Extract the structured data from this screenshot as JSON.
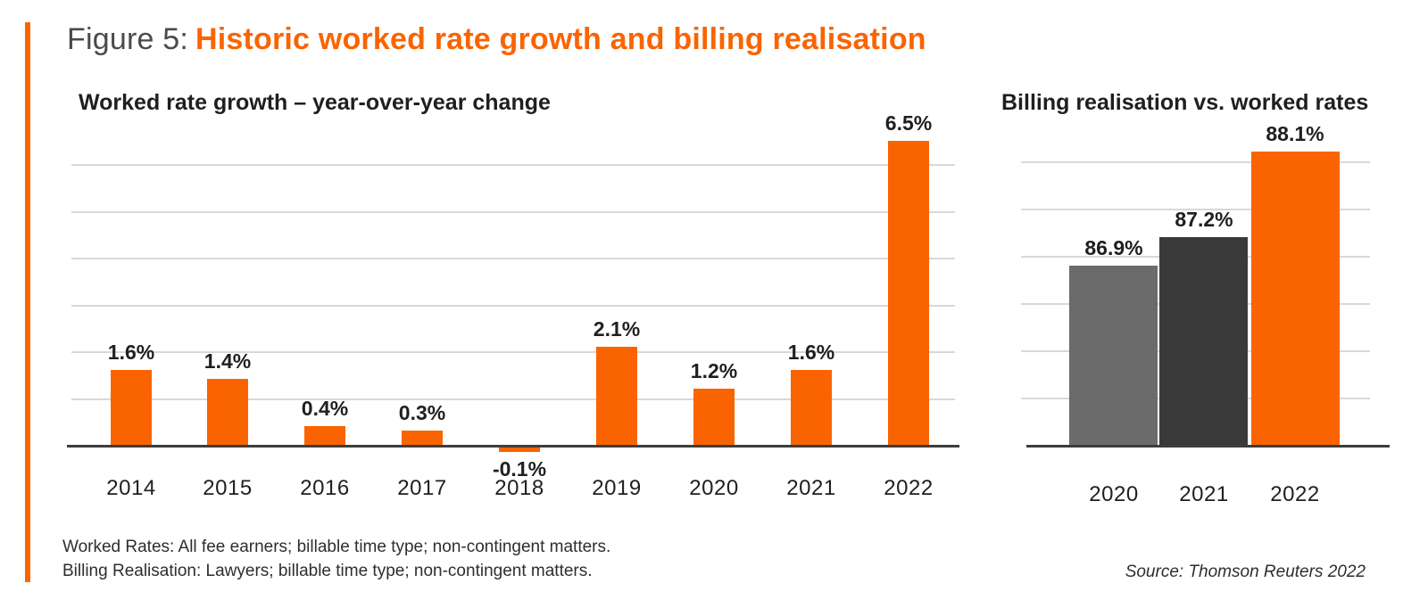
{
  "figure": {
    "title_prefix": "Figure 5:",
    "title_main": "Historic worked rate growth and billing realisation"
  },
  "chart_data": [
    {
      "type": "bar",
      "title": "Worked rate growth – year-over-year change",
      "categories": [
        "2014",
        "2015",
        "2016",
        "2017",
        "2018",
        "2019",
        "2020",
        "2021",
        "2022"
      ],
      "values": [
        1.6,
        1.4,
        0.4,
        0.3,
        -0.1,
        2.1,
        1.2,
        1.6,
        6.5
      ],
      "labels": [
        "1.6%",
        "1.4%",
        "0.4%",
        "0.3%",
        "-0.1%",
        "2.1%",
        "1.2%",
        "1.6%",
        "6.5%"
      ],
      "unit": "percent year-over-year change",
      "ylim": [
        -0.5,
        6.8
      ],
      "gridlines": [
        1,
        2,
        3,
        4,
        5,
        6
      ],
      "grid": true,
      "legend": false,
      "data_labels": true,
      "bar_color": "#FA6400",
      "xlabel": "",
      "ylabel": ""
    },
    {
      "type": "bar",
      "title": "Billing realisation vs. worked rates",
      "categories": [
        "2020",
        "2021",
        "2022"
      ],
      "values": [
        86.9,
        87.2,
        88.1
      ],
      "labels": [
        "86.9%",
        "87.2%",
        "88.1%"
      ],
      "unit": "percent",
      "ylim": [
        85,
        88.5
      ],
      "gridlines": [
        85.5,
        86,
        86.5,
        87,
        87.5,
        88
      ],
      "grid": true,
      "legend": false,
      "data_labels": true,
      "bar_colors": [
        "#6B6B6B",
        "#3A3A3A",
        "#FA6400"
      ],
      "xlabel": "",
      "ylabel": ""
    }
  ],
  "footnotes": [
    "Worked Rates: All fee earners; billable time type; non-contingent matters.",
    "Billing Realisation: Lawyers; billable time type; non-contingent matters."
  ],
  "source": "Source: Thomson Reuters 2022",
  "colors": {
    "accent_orange": "#FA6400",
    "bar_gray_medium": "#6B6B6B",
    "bar_gray_dark": "#3A3A3A",
    "axis": "#3D3D3D",
    "gridline": "#D8D8D8",
    "title_gray": "#4A4A4A",
    "text_dark": "#1F1F1F"
  }
}
